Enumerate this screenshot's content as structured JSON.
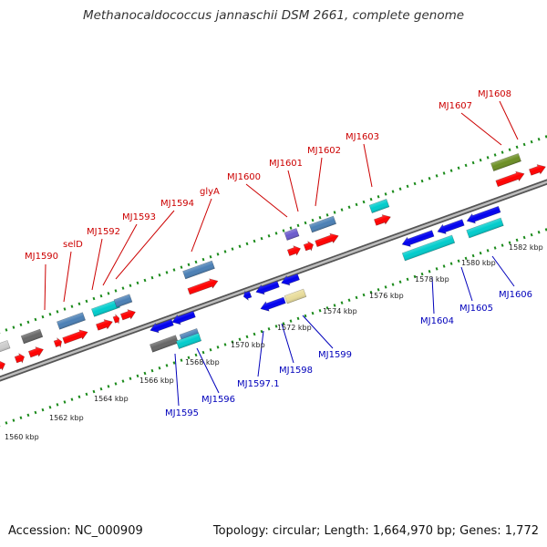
{
  "title": "Methanocaldococcus jannaschii DSM 2661, complete genome",
  "footer": {
    "accession": "Accession: NC_000909",
    "summary": "Topology: circular; Length: 1,664,970 bp; Genes: 1,772"
  },
  "colors": {
    "backbone": "#8a8a8a",
    "ticks": "#1a8a1a",
    "forward_label": "#cc0000",
    "reverse_label": "#0000bb",
    "cds_forward": "#ff0000",
    "cds_reverse": "#0000ee",
    "feature_steelblue": "#4a7fb5",
    "feature_cyan": "#00cccc",
    "feature_olive": "#6b8e23",
    "feature_gray": "#666666",
    "feature_purple": "#6a5acd",
    "feature_khaki": "#e8dc9a"
  },
  "scale_labels": [
    "1560 kbp",
    "1562 kbp",
    "1564 kbp",
    "1566 kbp",
    "1568 kbp",
    "1570 kbp",
    "1572 kbp",
    "1574 kbp",
    "1576 kbp",
    "1578 kbp",
    "1580 kbp",
    "1582 kbp"
  ],
  "forward_genes": [
    "MJ1590",
    "selD",
    "MJ1592",
    "MJ1593",
    "MJ1594",
    "glyA",
    "MJ1600",
    "MJ1601",
    "MJ1602",
    "MJ1603",
    "MJ1607",
    "MJ1608"
  ],
  "reverse_genes": [
    "MJ1595",
    "MJ1596",
    "MJ1597.1",
    "MJ1598",
    "MJ1599",
    "MJ1604",
    "MJ1605",
    "MJ1606"
  ]
}
